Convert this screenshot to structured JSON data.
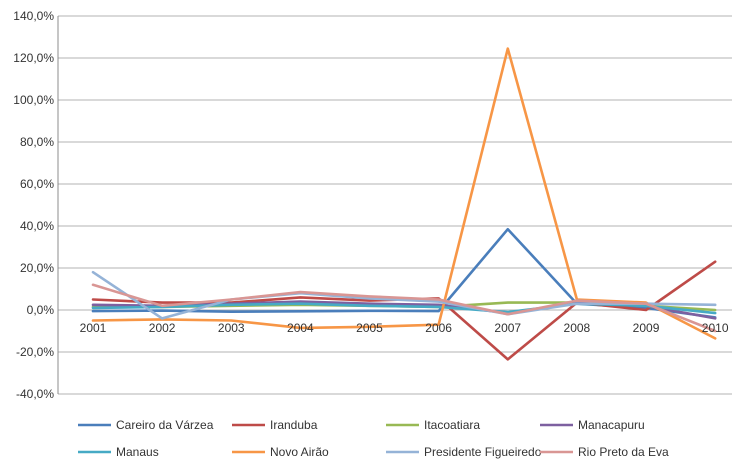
{
  "chart_data": {
    "type": "line",
    "x": [
      "2001",
      "2002",
      "2003",
      "2004",
      "2005",
      "2006",
      "2007",
      "2008",
      "2009",
      "2010"
    ],
    "ylim": [
      -40,
      140
    ],
    "yticks": [
      "-40,0%",
      "-20,0%",
      "0,0%",
      "20,0%",
      "40,0%",
      "60,0%",
      "80,0%",
      "100,0%",
      "120,0%",
      "140,0%"
    ],
    "ytick_values": [
      -40,
      -20,
      0,
      20,
      40,
      60,
      80,
      100,
      120,
      140
    ],
    "grid": "horizontal",
    "legend_position": "bottom",
    "series": [
      {
        "name": "Careiro da Várzea",
        "color": "#4A7EBB",
        "values": [
          -0.5,
          -0.3,
          -0.8,
          -0.6,
          -0.4,
          -0.5,
          38.5,
          3.0,
          1.0,
          -3.5
        ]
      },
      {
        "name": "Iranduba",
        "color": "#BE4B48",
        "values": [
          5.0,
          3.5,
          3.5,
          6.0,
          4.5,
          5.5,
          -23.5,
          3.5,
          0.0,
          23.0
        ]
      },
      {
        "name": "Itacoatiara",
        "color": "#98B954",
        "values": [
          1.5,
          1.5,
          2.0,
          2.5,
          2.0,
          1.5,
          3.5,
          3.5,
          2.0,
          0.0
        ]
      },
      {
        "name": "Manacapuru",
        "color": "#7D60A0",
        "values": [
          2.5,
          2.0,
          3.0,
          4.0,
          3.0,
          2.5,
          -1.5,
          3.5,
          2.0,
          -4.0
        ]
      },
      {
        "name": "Manaus",
        "color": "#46AAC5",
        "values": [
          1.0,
          1.5,
          2.5,
          3.0,
          2.0,
          1.5,
          -1.0,
          3.0,
          2.0,
          -1.5
        ]
      },
      {
        "name": "Novo Airão",
        "color": "#F79646",
        "values": [
          -5.0,
          -4.5,
          -5.0,
          -8.5,
          -8.0,
          -7.0,
          124.5,
          5.0,
          3.5,
          -13.5
        ]
      },
      {
        "name": "Presidente Figueiredo",
        "color": "#95B3D7",
        "values": [
          18.0,
          -4.0,
          5.0,
          8.0,
          5.5,
          4.0,
          -2.0,
          3.0,
          3.0,
          2.5
        ]
      },
      {
        "name": "Rio Preto da Eva",
        "color": "#D99694",
        "values": [
          12.0,
          2.0,
          5.0,
          8.5,
          6.5,
          5.0,
          -2.0,
          4.5,
          3.0,
          -10.0
        ]
      }
    ]
  }
}
